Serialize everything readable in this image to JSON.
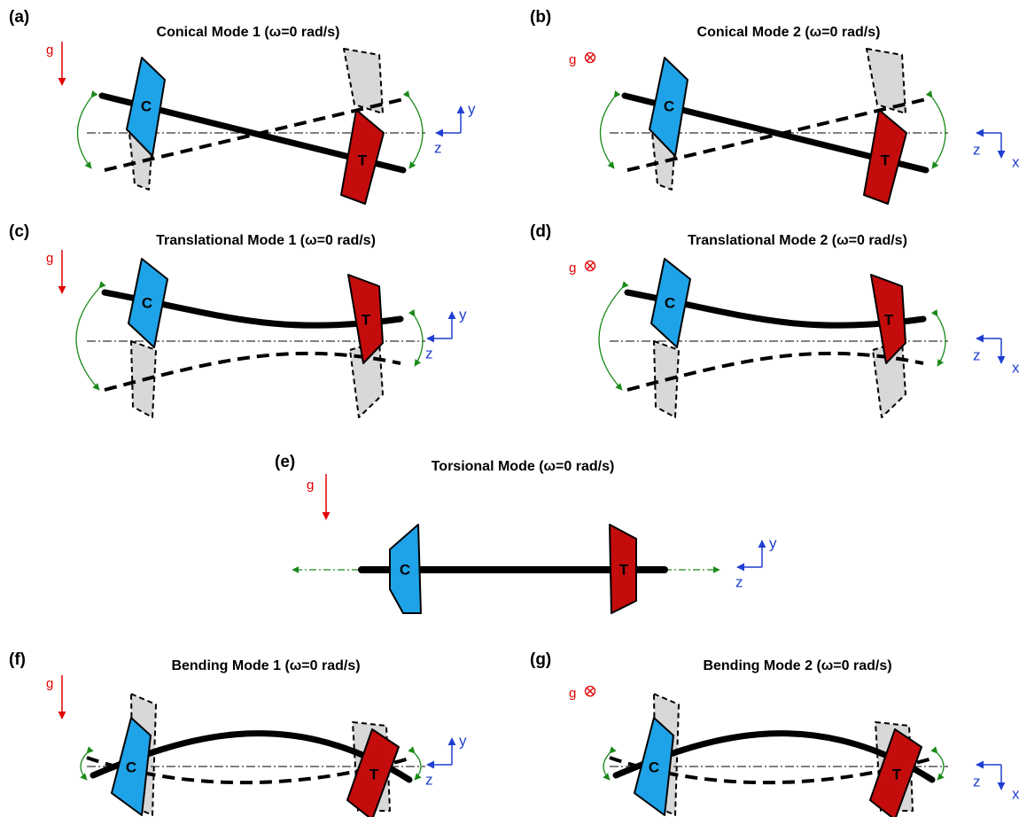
{
  "panels": [
    {
      "label": "(a)",
      "title": "Conical Mode 1 (ω=0 rad/s)",
      "gravity": "g",
      "compressor": "C",
      "turbine": "T",
      "axes": [
        "y",
        "z"
      ]
    },
    {
      "label": "(b)",
      "title": "Conical Mode 2 (ω=0 rad/s)",
      "gravity": "g",
      "compressor": "C",
      "turbine": "T",
      "axes": [
        "z",
        "x"
      ]
    },
    {
      "label": "(c)",
      "title": "Translational Mode 1 (ω=0 rad/s)",
      "gravity": "g",
      "compressor": "C",
      "turbine": "T",
      "axes": [
        "y",
        "z"
      ]
    },
    {
      "label": "(d)",
      "title": "Translational Mode 2 (ω=0 rad/s)",
      "gravity": "g",
      "compressor": "C",
      "turbine": "T",
      "axes": [
        "z",
        "x"
      ]
    },
    {
      "label": "(e)",
      "title": "Torsional Mode (ω=0 rad/s)",
      "gravity": "g",
      "compressor": "C",
      "turbine": "T",
      "axes": [
        "y",
        "z"
      ]
    },
    {
      "label": "(f)",
      "title": "Bending Mode 1 (ω=0 rad/s)",
      "gravity": "g",
      "compressor": "C",
      "turbine": "T",
      "axes": [
        "y",
        "z"
      ]
    },
    {
      "label": "(g)",
      "title": "Bending Mode 2  (ω=0 rad/s)",
      "gravity": "g",
      "compressor": "C",
      "turbine": "T",
      "axes": [
        "z",
        "x"
      ]
    }
  ]
}
